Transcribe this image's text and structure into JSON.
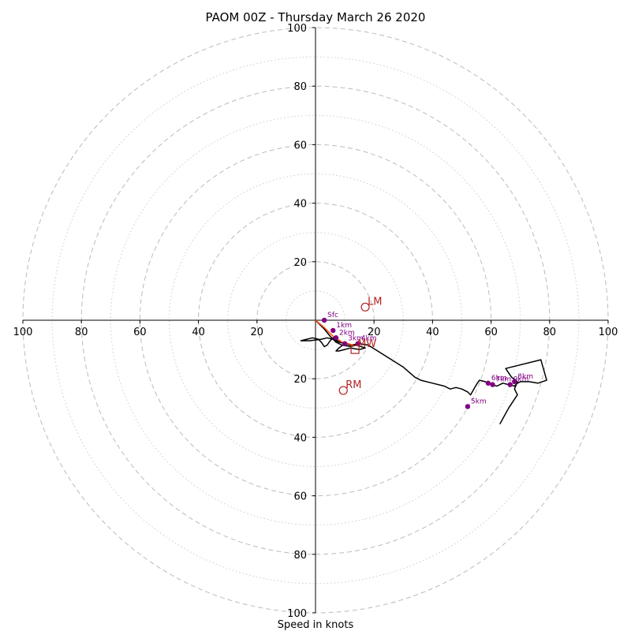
{
  "chart_data": {
    "type": "hodograph",
    "title": "PAOM 00Z - Thursday March 26 2020",
    "xlabel": "Speed in knots",
    "range": [
      -100,
      100
    ],
    "dashed_rings": [
      20,
      40,
      60,
      80,
      100
    ],
    "dotted_rings": [
      10,
      30,
      50,
      70,
      90
    ],
    "x_tick_labels": [
      "100",
      "80",
      "60",
      "40",
      "20",
      "20",
      "40",
      "60",
      "80",
      "100"
    ],
    "x_tick_values": [
      -100,
      -80,
      -60,
      -40,
      -20,
      20,
      40,
      60,
      80,
      100
    ],
    "y_tick_labels": [
      "100",
      "80",
      "60",
      "40",
      "20",
      "20",
      "40",
      "60",
      "80",
      "100"
    ],
    "y_tick_values": [
      100,
      80,
      60,
      40,
      20,
      -20,
      -40,
      -60,
      -80,
      -100
    ],
    "hodo_trace": [
      [
        0,
        0
      ],
      [
        1,
        -1
      ],
      [
        3,
        -3
      ],
      [
        5,
        -5.5
      ],
      [
        7,
        -7.5
      ],
      [
        9,
        -8.5
      ],
      [
        12,
        -9
      ],
      [
        14,
        -8.5
      ],
      [
        17,
        -9.5
      ],
      [
        15,
        -10
      ],
      [
        12,
        -9.5
      ],
      [
        10,
        -10
      ],
      [
        8,
        -10.5
      ],
      [
        7,
        -10.5
      ],
      [
        8,
        -9.5
      ],
      [
        10,
        -8
      ],
      [
        8,
        -7
      ],
      [
        6,
        -6
      ],
      [
        5,
        -7
      ],
      [
        4,
        -8.5
      ],
      [
        3,
        -9
      ],
      [
        2,
        -7.5
      ],
      [
        1,
        -6.5
      ],
      [
        -1,
        -6
      ],
      [
        -3,
        -6.5
      ],
      [
        -5,
        -7
      ],
      [
        -2,
        -7
      ],
      [
        2,
        -6.5
      ],
      [
        4,
        -6
      ],
      [
        6,
        -6.5
      ],
      [
        8,
        -7.5
      ],
      [
        10,
        -8
      ],
      [
        12,
        -8.5
      ],
      [
        15,
        -8
      ],
      [
        18,
        -8.5
      ],
      [
        22,
        -11
      ],
      [
        26,
        -13.5
      ],
      [
        30,
        -16
      ],
      [
        34,
        -19.5
      ],
      [
        36,
        -20.5
      ],
      [
        40,
        -21.5
      ],
      [
        44,
        -22.5
      ],
      [
        46,
        -23.5
      ],
      [
        48,
        -23
      ],
      [
        50,
        -23.5
      ],
      [
        52,
        -24.5
      ],
      [
        53,
        -25.5
      ],
      [
        55,
        -22
      ],
      [
        56,
        -20.5
      ],
      [
        58,
        -21
      ],
      [
        60,
        -22
      ],
      [
        62,
        -22.5
      ],
      [
        64,
        -21.5
      ],
      [
        66,
        -22
      ],
      [
        68,
        -22.5
      ],
      [
        69,
        -21.5
      ],
      [
        70,
        -21
      ],
      [
        73,
        -21
      ],
      [
        76,
        -21.5
      ],
      [
        79,
        -20.5
      ],
      [
        77,
        -13.5
      ],
      [
        65,
        -16.5
      ],
      [
        67,
        -19.5
      ],
      [
        69,
        -21
      ],
      [
        68,
        -23.5
      ],
      [
        69,
        -25.5
      ],
      [
        66,
        -30
      ],
      [
        63,
        -35.5
      ]
    ],
    "shear_vector": [
      [
        0,
        0
      ],
      [
        3,
        -2.5
      ],
      [
        6,
        -5.5
      ],
      [
        9,
        -7.5
      ],
      [
        13,
        -8.5
      ]
    ],
    "height_points": [
      {
        "label": "Sfc",
        "x": 3,
        "y": 0
      },
      {
        "label": "1km",
        "x": 6,
        "y": -3.5
      },
      {
        "label": "2km",
        "x": 7,
        "y": -6
      },
      {
        "label": "3km",
        "x": 10,
        "y": -8
      },
      {
        "label": "4km",
        "x": 14.5,
        "y": -8
      },
      {
        "label": "5km",
        "x": 52,
        "y": -29.5
      },
      {
        "label": "6km",
        "x": 59,
        "y": -21.5
      },
      {
        "label": "7km",
        "x": 60.5,
        "y": -22
      },
      {
        "label": "8km",
        "x": 68,
        "y": -21
      },
      {
        "label": "9km",
        "x": 66.5,
        "y": -22
      }
    ],
    "storm_motions": [
      {
        "label": "LM",
        "x": 17,
        "y": 4.5,
        "marker": "circle"
      },
      {
        "label": "RM",
        "x": 9.5,
        "y": -24,
        "marker": "circle"
      },
      {
        "label": "MW",
        "x": 13.5,
        "y": -10,
        "marker": "square"
      }
    ],
    "colors": {
      "trace": "#000000",
      "height_points": "#800080",
      "motion": "#b22222",
      "shear_vector_outer": "#ff0000",
      "shear_vector_inner": "#ff8c00",
      "rings": "#bbbbbb",
      "axes": "#000000"
    }
  }
}
